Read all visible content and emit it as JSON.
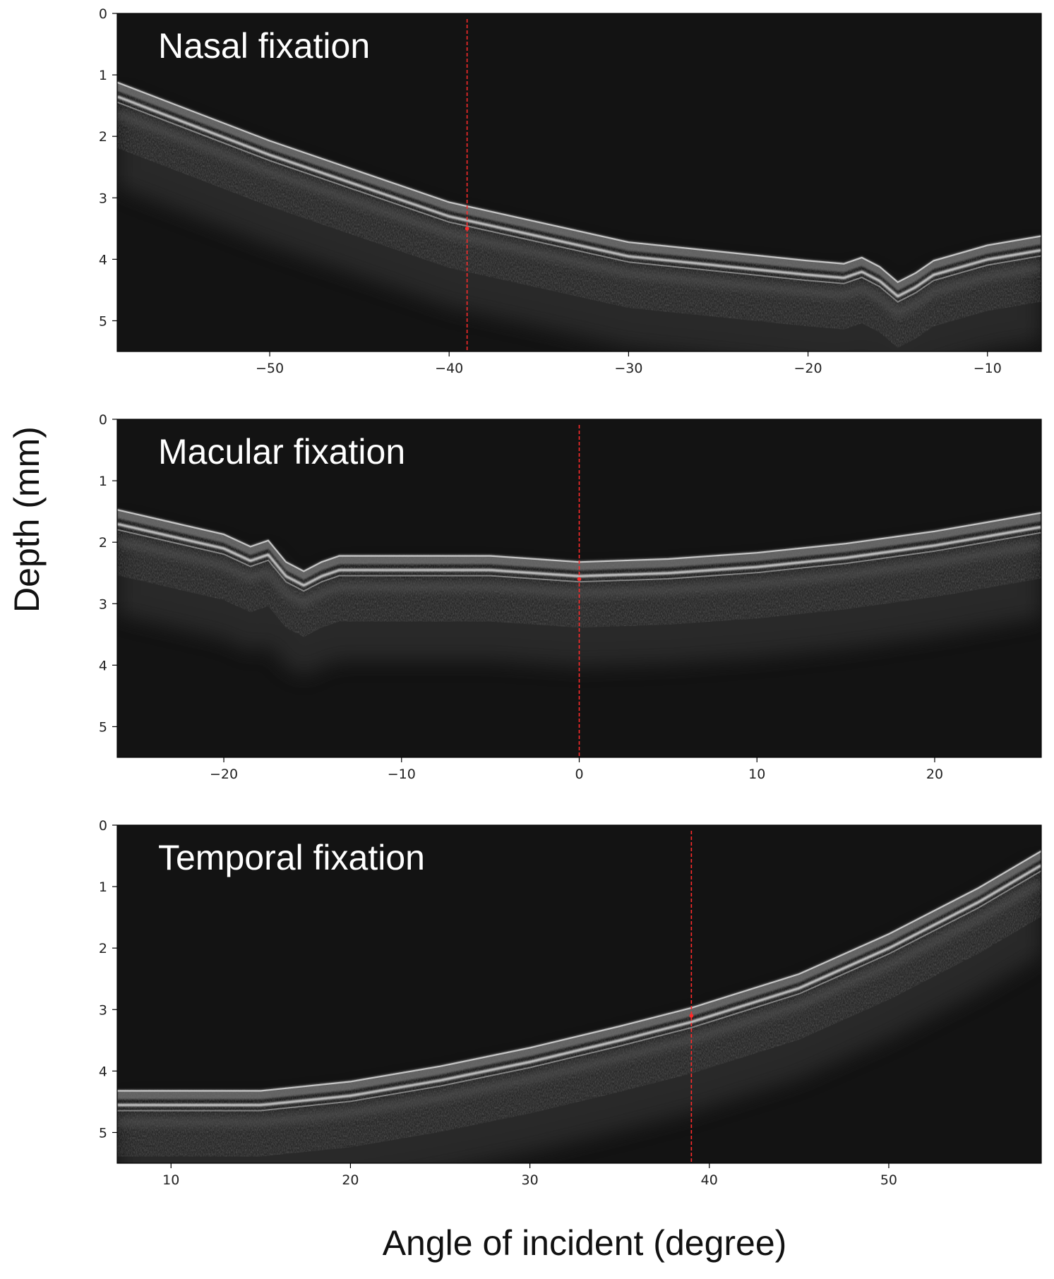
{
  "figure": {
    "ylabel": "Depth (mm)",
    "xlabel": "Angle of incident (degree)"
  },
  "chart_data": [
    {
      "type": "heatmap",
      "label": "Nasal fixation",
      "xlim": [
        -58.5,
        -7
      ],
      "ylim": [
        5.5,
        0
      ],
      "xticks": [
        -50,
        -40,
        -30,
        -20,
        -10
      ],
      "yticks": [
        0,
        1,
        2,
        3,
        4,
        5
      ],
      "marker_x": -39,
      "marker_depth": 3.5,
      "retina_surface": [
        [
          -58.5,
          1.1
        ],
        [
          -50,
          2.05
        ],
        [
          -40,
          3.05
        ],
        [
          -30,
          3.7
        ],
        [
          -20,
          4.0
        ],
        [
          -18,
          4.05
        ],
        [
          -17,
          3.95
        ],
        [
          -16,
          4.1
        ],
        [
          -15,
          4.35
        ],
        [
          -14,
          4.2
        ],
        [
          -13,
          4.0
        ],
        [
          -10,
          3.75
        ],
        [
          -7,
          3.6
        ]
      ]
    },
    {
      "type": "heatmap",
      "label": "Macular fixation",
      "xlim": [
        -26,
        26
      ],
      "ylim": [
        5.5,
        0
      ],
      "xticks": [
        -20,
        -10,
        0,
        10,
        20
      ],
      "yticks": [
        0,
        1,
        2,
        3,
        4,
        5
      ],
      "marker_x": 0,
      "marker_depth": 2.6,
      "retina_surface": [
        [
          -26,
          1.45
        ],
        [
          -20,
          1.85
        ],
        [
          -18.5,
          2.05
        ],
        [
          -17.5,
          1.95
        ],
        [
          -16.5,
          2.3
        ],
        [
          -15.5,
          2.45
        ],
        [
          -14.5,
          2.3
        ],
        [
          -13.5,
          2.2
        ],
        [
          -10,
          2.2
        ],
        [
          -5,
          2.2
        ],
        [
          0,
          2.3
        ],
        [
          5,
          2.25
        ],
        [
          10,
          2.15
        ],
        [
          15,
          2.0
        ],
        [
          20,
          1.8
        ],
        [
          26,
          1.5
        ]
      ]
    },
    {
      "type": "heatmap",
      "label": "Temporal fixation",
      "xlim": [
        7,
        58.5
      ],
      "ylim": [
        5.5,
        0
      ],
      "xticks": [
        10,
        20,
        30,
        40,
        50
      ],
      "yticks": [
        0,
        1,
        2,
        3,
        4,
        5
      ],
      "marker_x": 39,
      "marker_depth": 3.1,
      "retina_surface": [
        [
          7,
          4.3
        ],
        [
          15,
          4.3
        ],
        [
          20,
          4.15
        ],
        [
          25,
          3.9
        ],
        [
          30,
          3.6
        ],
        [
          35,
          3.25
        ],
        [
          39,
          2.95
        ],
        [
          45,
          2.4
        ],
        [
          50,
          1.75
        ],
        [
          55,
          1.0
        ],
        [
          58.5,
          0.4
        ]
      ]
    }
  ],
  "colors": {
    "background": "#131313",
    "marker": "#ff2a2a",
    "tissue_bright": "#d8d8d8",
    "tissue_mid": "#7a7a7a"
  }
}
